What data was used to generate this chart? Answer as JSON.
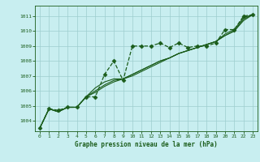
{
  "title": "Graphe pression niveau de la mer (hPa)",
  "background_color": "#c8eef0",
  "grid_color": "#9ecece",
  "line_color": "#1a5c1a",
  "xlim": [
    -0.5,
    23.5
  ],
  "ylim": [
    1003.3,
    1011.7
  ],
  "yticks": [
    1004,
    1005,
    1006,
    1007,
    1008,
    1009,
    1010,
    1011
  ],
  "xticks": [
    0,
    1,
    2,
    3,
    4,
    5,
    6,
    7,
    8,
    9,
    10,
    11,
    12,
    13,
    14,
    15,
    16,
    17,
    18,
    19,
    20,
    21,
    22,
    23
  ],
  "series": [
    {
      "x": [
        0,
        1,
        2,
        3,
        4,
        5,
        6,
        7,
        8,
        9,
        10,
        11,
        12,
        13,
        14,
        15,
        16,
        17,
        18,
        19,
        20,
        21,
        22,
        23
      ],
      "y": [
        1003.5,
        1004.8,
        1004.7,
        1004.9,
        1004.9,
        1005.6,
        1005.6,
        1007.1,
        1008.0,
        1006.7,
        1009.0,
        1009.0,
        1009.0,
        1009.2,
        1008.9,
        1009.2,
        1008.9,
        1009.0,
        1009.0,
        1009.2,
        1010.1,
        1010.1,
        1011.0,
        1011.1
      ],
      "marker": "D",
      "markersize": 2.5,
      "linewidth": 0.9,
      "linestyle": "--"
    },
    {
      "x": [
        0,
        1,
        2,
        3,
        4,
        5,
        6,
        7,
        8,
        9,
        10,
        11,
        12,
        13,
        14,
        15,
        16,
        17,
        18,
        19,
        20,
        21,
        22,
        23
      ],
      "y": [
        1003.5,
        1004.8,
        1004.6,
        1004.9,
        1004.9,
        1005.6,
        1006.2,
        1006.6,
        1006.8,
        1006.8,
        1007.0,
        1007.3,
        1007.6,
        1007.9,
        1008.2,
        1008.5,
        1008.7,
        1008.9,
        1009.1,
        1009.3,
        1009.8,
        1010.1,
        1010.9,
        1011.1
      ],
      "marker": null,
      "markersize": 0,
      "linewidth": 0.8,
      "linestyle": "-"
    },
    {
      "x": [
        0,
        1,
        2,
        3,
        4,
        5,
        6,
        7,
        8,
        9,
        10,
        11,
        12,
        13,
        14,
        15,
        16,
        17,
        18,
        19,
        20,
        21,
        22,
        23
      ],
      "y": [
        1003.5,
        1004.8,
        1004.6,
        1004.9,
        1004.9,
        1005.6,
        1006.0,
        1006.4,
        1006.7,
        1006.8,
        1007.1,
        1007.4,
        1007.7,
        1008.0,
        1008.2,
        1008.5,
        1008.7,
        1008.9,
        1009.1,
        1009.3,
        1009.7,
        1010.0,
        1010.8,
        1011.1
      ],
      "marker": null,
      "markersize": 0,
      "linewidth": 0.8,
      "linestyle": "-"
    },
    {
      "x": [
        0,
        1,
        2,
        3,
        4,
        5,
        6,
        7,
        8,
        9,
        10,
        11,
        12,
        13,
        14,
        15,
        16,
        17,
        18,
        19,
        20,
        21,
        22,
        23
      ],
      "y": [
        1003.5,
        1004.8,
        1004.6,
        1004.9,
        1004.9,
        1005.6,
        1005.9,
        1006.3,
        1006.6,
        1006.8,
        1007.1,
        1007.4,
        1007.7,
        1008.0,
        1008.2,
        1008.5,
        1008.7,
        1008.9,
        1009.1,
        1009.3,
        1009.7,
        1010.0,
        1010.7,
        1011.1
      ],
      "marker": null,
      "markersize": 0,
      "linewidth": 0.8,
      "linestyle": "-"
    }
  ]
}
